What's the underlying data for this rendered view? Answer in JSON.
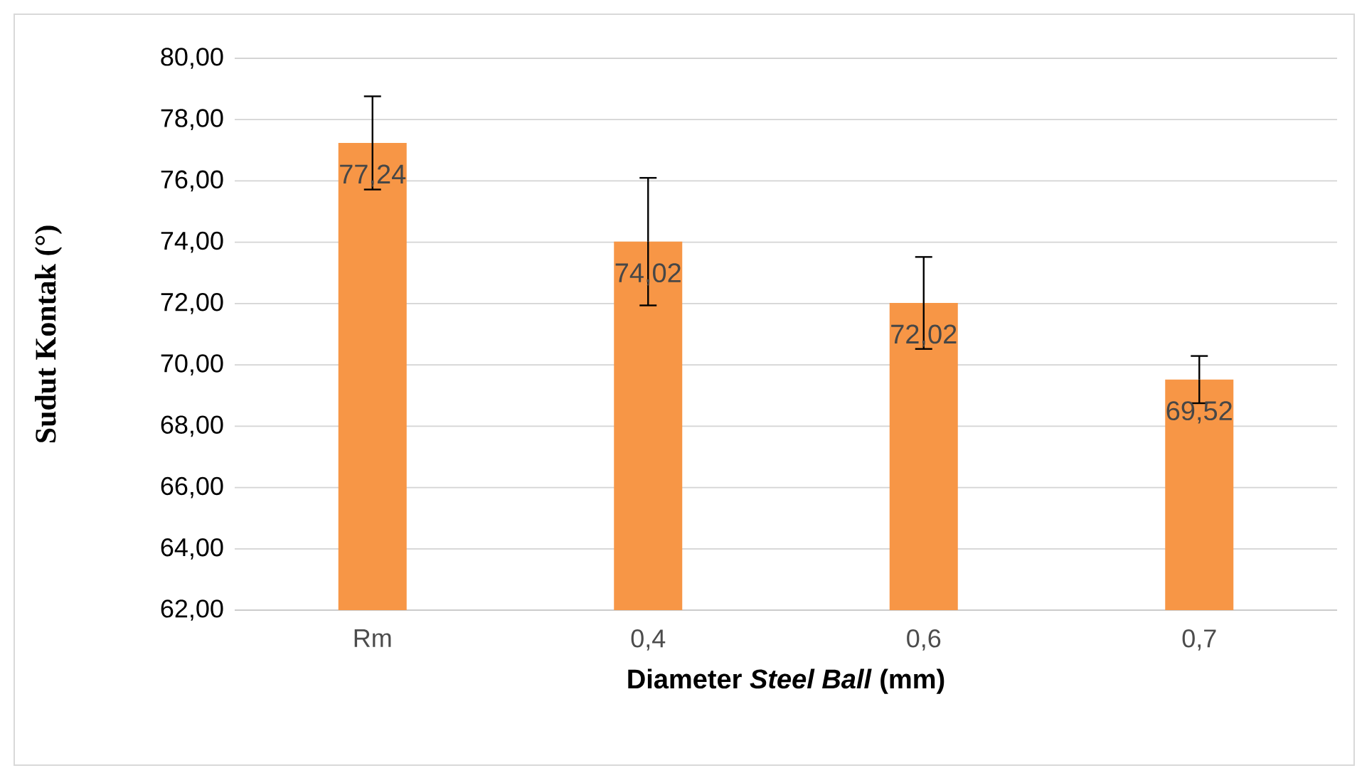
{
  "chart_data": {
    "type": "bar",
    "xlabel": "Diameter *Steel Ball* (mm)",
    "ylabel": "Sudut Kontak (°)",
    "categories": [
      "Rm",
      "0,4",
      "0,6",
      "0,7"
    ],
    "values": [
      77.24,
      74.02,
      72.02,
      69.52
    ],
    "value_labels": [
      "77,24",
      "74,02",
      "72,02",
      "69,52"
    ],
    "errors": [
      1.52,
      2.08,
      1.5,
      0.77
    ],
    "color": "#f79646",
    "ylim": [
      62,
      80
    ],
    "yticks": [
      {
        "value": 62,
        "label": "62,00"
      },
      {
        "value": 64,
        "label": "64,00"
      },
      {
        "value": 66,
        "label": "66,00"
      },
      {
        "value": 68,
        "label": "68,00"
      },
      {
        "value": 70,
        "label": "70,00"
      },
      {
        "value": 72,
        "label": "72,00"
      },
      {
        "value": 74,
        "label": "74,00"
      },
      {
        "value": 76,
        "label": "76,00"
      },
      {
        "value": 78,
        "label": "78,00"
      },
      {
        "value": 80,
        "label": "80,00"
      }
    ],
    "grid": "y"
  }
}
